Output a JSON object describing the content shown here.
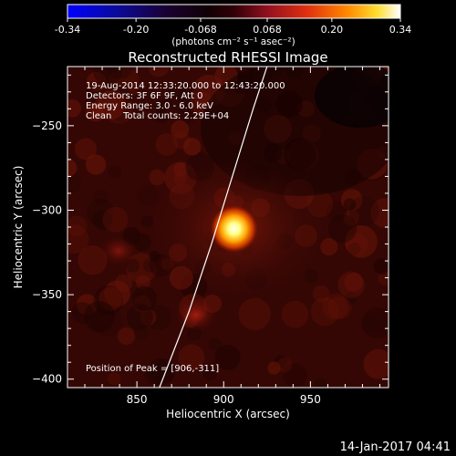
{
  "colorbar": {
    "ticks": [
      "-0.34",
      "-0.20",
      "-0.068",
      "0.068",
      "0.20",
      "0.34"
    ],
    "tick_values": [
      -0.34,
      -0.2,
      -0.068,
      0.068,
      0.2,
      0.34
    ],
    "range": [
      -0.34,
      0.34
    ],
    "unit_label": "(photons cm⁻² s⁻¹ asec⁻²)"
  },
  "chart_data": {
    "type": "heatmap",
    "title": "Reconstructed RHESSI Image",
    "xlabel": "Heliocentric X (arcsec)",
    "ylabel": "Heliocentric Y (arcsec)",
    "xlim": [
      810,
      995
    ],
    "ylim": [
      -405,
      -215
    ],
    "x_ticks": [
      850,
      900,
      950
    ],
    "x_tick_labels": [
      "850",
      "900",
      "950"
    ],
    "y_ticks": [
      -250,
      -300,
      -350,
      -400
    ],
    "y_tick_labels": [
      "−250",
      "−300",
      "−350",
      "−400"
    ],
    "annotations": [
      "19-Aug-2014 12:33:20.000 to 12:43:20.000",
      "Detectors: 3F 6F 9F, Att 0",
      "Energy Range: 3.0 - 6.0 keV",
      "Clean    Total counts: 2.29E+04"
    ],
    "peak_label": "Position of Peak = [906,-311]",
    "peak": [
      906,
      -311
    ],
    "limb_curve": [
      [
        863,
        -405
      ],
      [
        880,
        -360
      ],
      [
        893,
        -320
      ],
      [
        905,
        -280
      ],
      [
        917,
        -240
      ],
      [
        925,
        -215
      ]
    ],
    "colormap": "red-temperature",
    "grid": false
  },
  "footer": {
    "timestamp": "14-Jan-2017 04:41"
  }
}
